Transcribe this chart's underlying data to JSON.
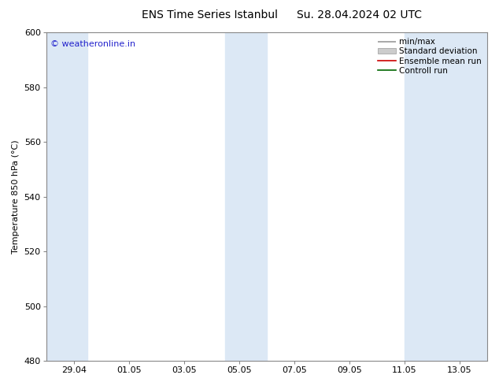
{
  "title_left": "ENS Time Series Istanbul",
  "title_right": "Su. 28.04.2024 02 UTC",
  "ylabel": "Temperature 850 hPa (°C)",
  "ylim": [
    480,
    600
  ],
  "yticks": [
    480,
    500,
    520,
    540,
    560,
    580,
    600
  ],
  "xtick_labels": [
    "29.04",
    "01.05",
    "03.05",
    "05.05",
    "07.05",
    "09.05",
    "11.05",
    "13.05"
  ],
  "watermark": "© weatheronline.in",
  "band_color": "#dce8f5",
  "background_color": "#ffffff",
  "spine_color": "#888888",
  "watermark_color": "#2222cc",
  "title_fontsize": 10,
  "axis_fontsize": 8,
  "legend_fontsize": 7.5,
  "watermark_fontsize": 8,
  "ylabel_fontsize": 8
}
